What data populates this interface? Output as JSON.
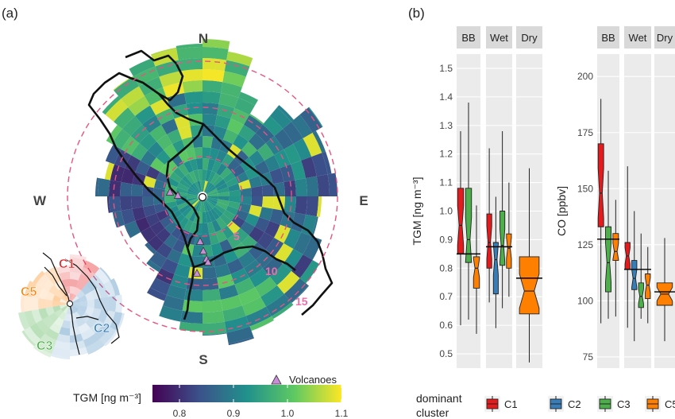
{
  "panel_a": {
    "label": "(a)",
    "compass": {
      "north": "N",
      "south": "S",
      "east": "E",
      "west": "W"
    },
    "rings": {
      "values": [
        "5",
        "10",
        "15"
      ]
    },
    "cluster_labels": [
      "C1",
      "C5",
      "C2",
      "C3"
    ],
    "volcano_legend": "Volcanoes",
    "colorbar": {
      "title": "TGM [ng m⁻³]",
      "min": 0.75,
      "max": 1.1,
      "ticks": [
        "0.8",
        "0.9",
        "1.0",
        "1.1"
      ],
      "tick_values": [
        0.8,
        0.9,
        1.0,
        1.1
      ],
      "palette": [
        "#440154",
        "#3b528b",
        "#21918c",
        "#5ec962",
        "#fde725"
      ]
    }
  },
  "panel_b": {
    "label": "(b)",
    "legend": {
      "title_line1": "dominant",
      "title_line2": "cluster",
      "items": [
        {
          "name": "C1",
          "color": "#e41a1c"
        },
        {
          "name": "C2",
          "color": "#377eb8"
        },
        {
          "name": "C3",
          "color": "#4daf4a"
        },
        {
          "name": "C5",
          "color": "#ff7f00"
        }
      ]
    }
  },
  "chart_data": [
    {
      "type": "box",
      "ylabel": "TGM [ng m⁻³]",
      "ylim": [
        0.45,
        1.55
      ],
      "yticks": [
        0.5,
        0.6,
        0.7,
        0.8,
        0.9,
        1.0,
        1.1,
        1.2,
        1.3,
        1.4,
        1.5
      ],
      "ytick_labels": [
        "0.5",
        "0.6",
        "0.7",
        "0.8",
        "0.9",
        "1.0",
        "1.1",
        "1.2",
        "1.3",
        "1.4",
        "1.5"
      ],
      "facets": [
        {
          "name": "BB",
          "median_line": 0.85,
          "boxes": [
            {
              "cluster": "C1",
              "whislo": 0.6,
              "q1": 0.85,
              "med": 0.95,
              "q3": 1.08,
              "whishi": 1.28
            },
            {
              "cluster": "C3",
              "whislo": 0.62,
              "q1": 0.82,
              "med": 0.9,
              "q3": 1.08,
              "whishi": 1.38
            },
            {
              "cluster": "C5",
              "whislo": 0.57,
              "q1": 0.73,
              "med": 0.8,
              "q3": 0.84,
              "whishi": 1.02
            }
          ]
        },
        {
          "name": "Wet",
          "median_line": 0.875,
          "boxes": [
            {
              "cluster": "C1",
              "whislo": 0.68,
              "q1": 0.8,
              "med": 0.89,
              "q3": 0.99,
              "whishi": 1.22
            },
            {
              "cluster": "C2",
              "whislo": 0.59,
              "q1": 0.71,
              "med": 0.83,
              "q3": 0.89,
              "whishi": 1.05
            },
            {
              "cluster": "C3",
              "whislo": 0.66,
              "q1": 0.81,
              "med": 0.88,
              "q3": 1.0,
              "whishi": 1.28
            },
            {
              "cluster": "C5",
              "whislo": 0.7,
              "q1": 0.8,
              "med": 0.87,
              "q3": 0.92,
              "whishi": 1.1
            }
          ]
        },
        {
          "name": "Dry",
          "median_line": 0.765,
          "boxes": [
            {
              "cluster": "C5",
              "whislo": 0.47,
              "q1": 0.64,
              "med": 0.72,
              "q3": 0.84,
              "whishi": 1.15
            }
          ]
        }
      ]
    },
    {
      "type": "box",
      "ylabel": "CO [ppbv]",
      "ylim": [
        70,
        210
      ],
      "yticks": [
        75,
        100,
        125,
        150,
        175,
        200
      ],
      "ytick_labels": [
        "75",
        "100",
        "125",
        "150",
        "175",
        "200"
      ],
      "facets": [
        {
          "name": "BB",
          "median_line": 127.5,
          "boxes": [
            {
              "cluster": "C1",
              "whislo": 90,
              "q1": 133,
              "med": 148,
              "q3": 170,
              "whishi": 190
            },
            {
              "cluster": "C3",
              "whislo": 92,
              "q1": 104,
              "med": 117,
              "q3": 133,
              "whishi": 158
            },
            {
              "cluster": "C5",
              "whislo": 93,
              "q1": 118,
              "med": 122,
              "q3": 130,
              "whishi": 145
            }
          ]
        },
        {
          "name": "Wet",
          "median_line": 114,
          "boxes": [
            {
              "cluster": "C1",
              "whislo": 88,
              "q1": 114,
              "med": 120,
              "q3": 126,
              "whishi": 160
            },
            {
              "cluster": "C2",
              "whislo": 82,
              "q1": 105,
              "med": 110,
              "q3": 118,
              "whishi": 140
            },
            {
              "cluster": "C3",
              "whislo": 92,
              "q1": 97,
              "med": 102,
              "q3": 108,
              "whishi": 130
            },
            {
              "cluster": "C5",
              "whislo": 90,
              "q1": 101,
              "med": 107,
              "q3": 112,
              "whishi": 124
            }
          ]
        },
        {
          "name": "Dry",
          "median_line": 104,
          "boxes": [
            {
              "cluster": "C5",
              "whislo": 82,
              "q1": 98,
              "med": 103,
              "q3": 108,
              "whishi": 128
            }
          ]
        }
      ]
    }
  ]
}
